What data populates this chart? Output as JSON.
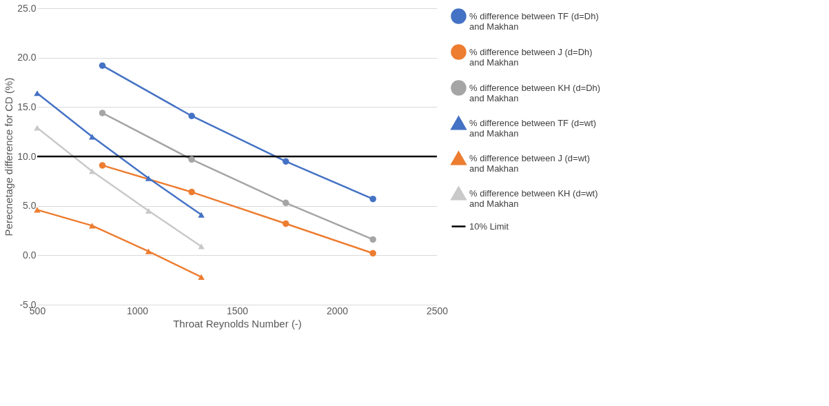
{
  "chart_data": {
    "type": "line",
    "xlabel": "Throat Reynolds Number  (-)",
    "ylabel": "Perecnetage  difference for CD (%)",
    "xlim": [
      500,
      2500
    ],
    "xticks": [
      500,
      1000,
      1500,
      2000,
      2500
    ],
    "ylim": [
      -5,
      25
    ],
    "yticks": [
      {
        "value": -5,
        "label": "-5.0"
      },
      {
        "value": 0,
        "label": "0.0"
      },
      {
        "value": 5,
        "label": "5.0"
      },
      {
        "value": 10,
        "label": "10.0"
      },
      {
        "value": 15,
        "label": "15.0"
      },
      {
        "value": 20,
        "label": "20.0"
      },
      {
        "value": 25,
        "label": "25.0"
      }
    ],
    "grid": "y",
    "legend": "right",
    "series": [
      {
        "name": "% difference between TF (d=Dh) and Makhan",
        "color": "#4472c4",
        "marker": "circle",
        "x": [
          826,
          1273,
          1744,
          2180
        ],
        "values": [
          19.2,
          14.1,
          9.5,
          5.7
        ]
      },
      {
        "name": "% difference between J (d=Dh) and Makhan",
        "color": "#ed7d31",
        "marker": "circle",
        "x": [
          826,
          1273,
          1744,
          2180
        ],
        "values": [
          9.1,
          6.4,
          3.2,
          0.2
        ]
      },
      {
        "name": "% difference between KH (d=Dh) and Makhan",
        "color": "#a5a5a5",
        "marker": "circle",
        "x": [
          826,
          1273,
          1744,
          2180
        ],
        "values": [
          14.4,
          9.7,
          5.3,
          1.6
        ]
      },
      {
        "name": "% difference between TF (d=wt) and Makhan",
        "color": "#4472c4",
        "marker": "triangle",
        "x": [
          500,
          775,
          1057,
          1321
        ],
        "values": [
          16.4,
          12.0,
          7.8,
          4.1
        ]
      },
      {
        "name": "% difference between J (d=wt) and Makhan",
        "color": "#ed7d31",
        "marker": "triangle",
        "x": [
          500,
          775,
          1057,
          1321
        ],
        "values": [
          4.6,
          3.0,
          0.4,
          -2.2
        ]
      },
      {
        "name": "% difference between KH (d=wt) and Makhan",
        "color": "#c9c9c9",
        "marker": "triangle",
        "x": [
          500,
          775,
          1057,
          1321
        ],
        "values": [
          12.9,
          8.5,
          4.5,
          0.9
        ]
      }
    ],
    "ref_lines": [
      {
        "axis": "y",
        "value": 10,
        "label": "10% Limit",
        "color": "#000000"
      }
    ]
  }
}
